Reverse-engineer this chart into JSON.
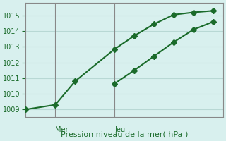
{
  "title": "",
  "xlabel": "Pression niveau de la mer( hPa )",
  "background_color": "#d8f0ee",
  "grid_color": "#b8d8d4",
  "line_color": "#1a6b2a",
  "ylim": [
    1008.5,
    1015.8
  ],
  "xlim": [
    0,
    10
  ],
  "yticks": [
    1009,
    1010,
    1011,
    1012,
    1013,
    1014,
    1015
  ],
  "vlines": [
    1.5,
    4.5
  ],
  "vline_labels": [
    "Mer",
    "Jeu"
  ],
  "line1_x": [
    0,
    1.5,
    2.5,
    4.5,
    5.5,
    6.5,
    7.5,
    8.5,
    9.5
  ],
  "line1_y": [
    1009.0,
    1009.3,
    1010.8,
    1012.85,
    1013.7,
    1014.45,
    1015.05,
    1015.2,
    1015.3
  ],
  "line2_x": [
    4.5,
    5.5,
    6.5,
    7.5,
    8.5,
    9.5
  ],
  "line2_y": [
    1010.65,
    1011.5,
    1012.4,
    1013.3,
    1014.1,
    1014.6
  ],
  "marker": "D",
  "marker_size": 4,
  "linewidth": 1.5
}
